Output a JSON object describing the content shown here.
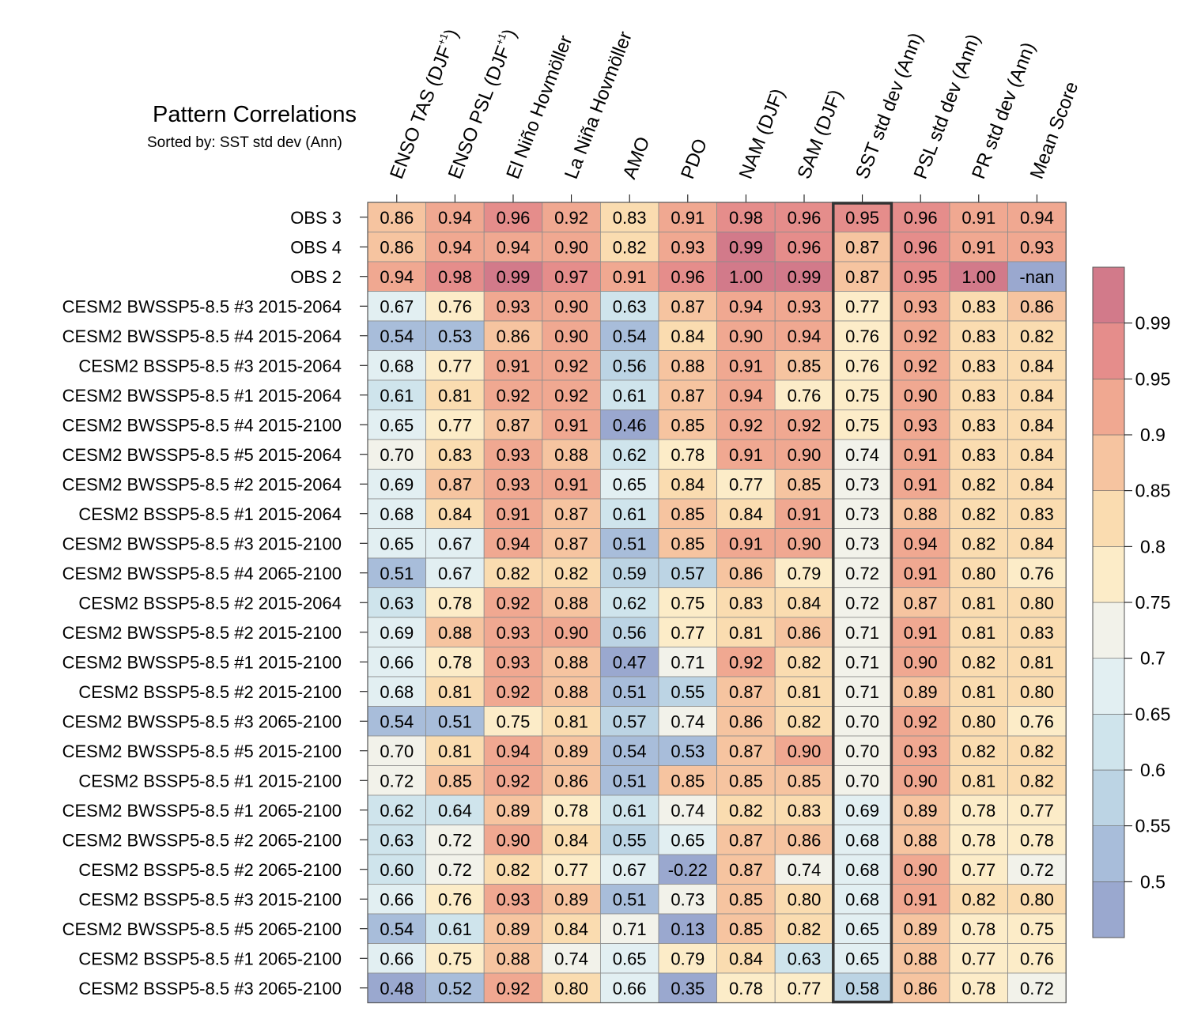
{
  "chart_data": {
    "type": "heatmap",
    "title": "Pattern Correlations",
    "subtitle": "Sorted by: SST std dev (Ann)",
    "sorted_by": "SST std dev (Ann)",
    "columns": [
      {
        "text": "ENSO TAS (DJF",
        "sup": "+1",
        "tail": ")"
      },
      {
        "text": "ENSO PSL (DJF",
        "sup": "+1",
        "tail": ")"
      },
      {
        "text": "El Niño Hovmöller",
        "sup": "",
        "tail": ""
      },
      {
        "text": "La Niña Hovmöller",
        "sup": "",
        "tail": ""
      },
      {
        "text": "AMO",
        "sup": "",
        "tail": ""
      },
      {
        "text": "PDO",
        "sup": "",
        "tail": ""
      },
      {
        "text": "NAM (DJF)",
        "sup": "",
        "tail": ""
      },
      {
        "text": "SAM (DJF)",
        "sup": "",
        "tail": ""
      },
      {
        "text": "SST std dev (Ann)",
        "sup": "",
        "tail": ""
      },
      {
        "text": "PSL std dev (Ann)",
        "sup": "",
        "tail": ""
      },
      {
        "text": "PR std dev (Ann)",
        "sup": "",
        "tail": ""
      },
      {
        "text": "Mean Score",
        "sup": "",
        "tail": ""
      }
    ],
    "rows": [
      "OBS 3",
      "OBS 4",
      "OBS 2",
      "CESM2 BWSSP5-8.5 #3 2015-2064",
      "CESM2 BWSSP5-8.5 #4 2015-2064",
      "CESM2 BSSP5-8.5 #3 2015-2064",
      "CESM2 BWSSP5-8.5 #1 2015-2064",
      "CESM2 BWSSP5-8.5 #4 2015-2100",
      "CESM2 BWSSP5-8.5 #5 2015-2064",
      "CESM2 BWSSP5-8.5 #2 2015-2064",
      "CESM2 BSSP5-8.5 #1 2015-2064",
      "CESM2 BWSSP5-8.5 #3 2015-2100",
      "CESM2 BWSSP5-8.5 #4 2065-2100",
      "CESM2 BSSP5-8.5 #2 2015-2064",
      "CESM2 BWSSP5-8.5 #2 2015-2100",
      "CESM2 BWSSP5-8.5 #1 2015-2100",
      "CESM2 BSSP5-8.5 #2 2015-2100",
      "CESM2 BWSSP5-8.5 #3 2065-2100",
      "CESM2 BWSSP5-8.5 #5 2015-2100",
      "CESM2 BSSP5-8.5 #1 2015-2100",
      "CESM2 BWSSP5-8.5 #1 2065-2100",
      "CESM2 BWSSP5-8.5 #2 2065-2100",
      "CESM2 BSSP5-8.5 #2 2065-2100",
      "CESM2 BSSP5-8.5 #3 2015-2100",
      "CESM2 BWSSP5-8.5 #5 2065-2100",
      "CESM2 BSSP5-8.5 #1 2065-2100",
      "CESM2 BSSP5-8.5 #3 2065-2100"
    ],
    "values": [
      [
        "0.86",
        "0.94",
        "0.96",
        "0.92",
        "0.83",
        "0.91",
        "0.98",
        "0.96",
        "0.95",
        "0.96",
        "0.91",
        "0.94"
      ],
      [
        "0.86",
        "0.94",
        "0.94",
        "0.90",
        "0.82",
        "0.93",
        "0.99",
        "0.96",
        "0.87",
        "0.96",
        "0.91",
        "0.93"
      ],
      [
        "0.94",
        "0.98",
        "0.99",
        "0.97",
        "0.91",
        "0.96",
        "1.00",
        "0.99",
        "0.87",
        "0.95",
        "1.00",
        "-nan"
      ],
      [
        "0.67",
        "0.76",
        "0.93",
        "0.90",
        "0.63",
        "0.87",
        "0.94",
        "0.93",
        "0.77",
        "0.93",
        "0.83",
        "0.86"
      ],
      [
        "0.54",
        "0.53",
        "0.86",
        "0.90",
        "0.54",
        "0.84",
        "0.90",
        "0.94",
        "0.76",
        "0.92",
        "0.83",
        "0.82"
      ],
      [
        "0.68",
        "0.77",
        "0.91",
        "0.92",
        "0.56",
        "0.88",
        "0.91",
        "0.85",
        "0.76",
        "0.92",
        "0.83",
        "0.84"
      ],
      [
        "0.61",
        "0.81",
        "0.92",
        "0.92",
        "0.61",
        "0.87",
        "0.94",
        "0.76",
        "0.75",
        "0.90",
        "0.83",
        "0.84"
      ],
      [
        "0.65",
        "0.77",
        "0.87",
        "0.91",
        "0.46",
        "0.85",
        "0.92",
        "0.92",
        "0.75",
        "0.93",
        "0.83",
        "0.84"
      ],
      [
        "0.70",
        "0.83",
        "0.93",
        "0.88",
        "0.62",
        "0.78",
        "0.91",
        "0.90",
        "0.74",
        "0.91",
        "0.83",
        "0.84"
      ],
      [
        "0.69",
        "0.87",
        "0.93",
        "0.91",
        "0.65",
        "0.84",
        "0.77",
        "0.85",
        "0.73",
        "0.91",
        "0.82",
        "0.84"
      ],
      [
        "0.68",
        "0.84",
        "0.91",
        "0.87",
        "0.61",
        "0.85",
        "0.84",
        "0.91",
        "0.73",
        "0.88",
        "0.82",
        "0.83"
      ],
      [
        "0.65",
        "0.67",
        "0.94",
        "0.87",
        "0.51",
        "0.85",
        "0.91",
        "0.90",
        "0.73",
        "0.94",
        "0.82",
        "0.84"
      ],
      [
        "0.51",
        "0.67",
        "0.82",
        "0.82",
        "0.59",
        "0.57",
        "0.86",
        "0.79",
        "0.72",
        "0.91",
        "0.80",
        "0.76"
      ],
      [
        "0.63",
        "0.78",
        "0.92",
        "0.88",
        "0.62",
        "0.75",
        "0.83",
        "0.84",
        "0.72",
        "0.87",
        "0.81",
        "0.80"
      ],
      [
        "0.69",
        "0.88",
        "0.93",
        "0.90",
        "0.56",
        "0.77",
        "0.81",
        "0.86",
        "0.71",
        "0.91",
        "0.81",
        "0.83"
      ],
      [
        "0.66",
        "0.78",
        "0.93",
        "0.88",
        "0.47",
        "0.71",
        "0.92",
        "0.82",
        "0.71",
        "0.90",
        "0.82",
        "0.81"
      ],
      [
        "0.68",
        "0.81",
        "0.92",
        "0.88",
        "0.51",
        "0.55",
        "0.87",
        "0.81",
        "0.71",
        "0.89",
        "0.81",
        "0.80"
      ],
      [
        "0.54",
        "0.51",
        "0.75",
        "0.81",
        "0.57",
        "0.74",
        "0.86",
        "0.82",
        "0.70",
        "0.92",
        "0.80",
        "0.76"
      ],
      [
        "0.70",
        "0.81",
        "0.94",
        "0.89",
        "0.54",
        "0.53",
        "0.87",
        "0.90",
        "0.70",
        "0.93",
        "0.82",
        "0.82"
      ],
      [
        "0.72",
        "0.85",
        "0.92",
        "0.86",
        "0.51",
        "0.85",
        "0.85",
        "0.85",
        "0.70",
        "0.90",
        "0.81",
        "0.82"
      ],
      [
        "0.62",
        "0.64",
        "0.89",
        "0.78",
        "0.61",
        "0.74",
        "0.82",
        "0.83",
        "0.69",
        "0.89",
        "0.78",
        "0.77"
      ],
      [
        "0.63",
        "0.72",
        "0.90",
        "0.84",
        "0.55",
        "0.65",
        "0.87",
        "0.86",
        "0.68",
        "0.88",
        "0.78",
        "0.78"
      ],
      [
        "0.60",
        "0.72",
        "0.82",
        "0.77",
        "0.67",
        "-0.22",
        "0.87",
        "0.74",
        "0.68",
        "0.90",
        "0.77",
        "0.72"
      ],
      [
        "0.66",
        "0.76",
        "0.93",
        "0.89",
        "0.51",
        "0.73",
        "0.85",
        "0.80",
        "0.68",
        "0.91",
        "0.82",
        "0.80"
      ],
      [
        "0.54",
        "0.61",
        "0.89",
        "0.84",
        "0.71",
        "0.13",
        "0.85",
        "0.82",
        "0.65",
        "0.89",
        "0.78",
        "0.75"
      ],
      [
        "0.66",
        "0.75",
        "0.88",
        "0.74",
        "0.65",
        "0.79",
        "0.84",
        "0.63",
        "0.65",
        "0.88",
        "0.77",
        "0.76"
      ],
      [
        "0.48",
        "0.52",
        "0.92",
        "0.80",
        "0.66",
        "0.35",
        "0.78",
        "0.77",
        "0.58",
        "0.86",
        "0.78",
        "0.72"
      ]
    ],
    "colorbar": {
      "boundaries": [
        0.5,
        0.55,
        0.6,
        0.65,
        0.7,
        0.75,
        0.8,
        0.85,
        0.9,
        0.95,
        0.99
      ],
      "tick_labels": [
        "0.5",
        "0.55",
        "0.6",
        "0.65",
        "0.7",
        "0.75",
        "0.8",
        "0.85",
        "0.9",
        "0.95",
        "0.99"
      ],
      "colors": [
        "#9aa8cf",
        "#a8bdda",
        "#bcd4e4",
        "#cfe4ec",
        "#e2eff2",
        "#f2f2ea",
        "#fcecc8",
        "#fadcb0",
        "#f6c4a0",
        "#f0a891",
        "#e58d8b",
        "#d27a8a"
      ],
      "nan_color": "#9aa8cf"
    }
  }
}
